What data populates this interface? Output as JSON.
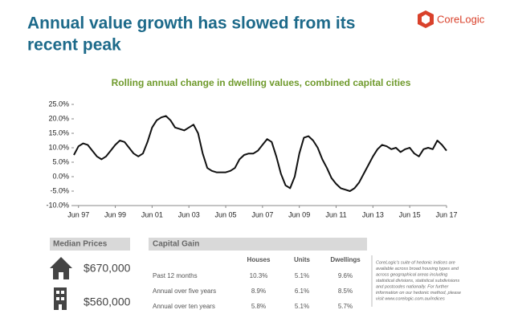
{
  "header": {
    "title_lines": [
      "Annual value growth has slowed from its",
      "recent peak"
    ],
    "logo": "CoreLogic"
  },
  "chart_data": {
    "type": "line",
    "title": "Rolling annual change in dwelling values, combined capital cities",
    "categories": [
      null,
      "Jun 97",
      null,
      null,
      null,
      null,
      null,
      null,
      null,
      "Jun 99",
      null,
      null,
      null,
      null,
      null,
      null,
      null,
      "Jun 01",
      null,
      null,
      null,
      null,
      null,
      null,
      null,
      "Jun 03",
      null,
      null,
      null,
      null,
      null,
      null,
      null,
      "Jun 05",
      null,
      null,
      null,
      null,
      null,
      null,
      null,
      "Jun 07",
      null,
      null,
      null,
      null,
      null,
      null,
      null,
      "Jun 09",
      null,
      null,
      null,
      null,
      null,
      null,
      null,
      "Jun 11",
      null,
      null,
      null,
      null,
      null,
      null,
      null,
      "Jun 13",
      null,
      null,
      null,
      null,
      null,
      null,
      null,
      "Jun 15",
      null,
      null,
      null,
      null,
      null,
      null,
      null,
      "Jun 17"
    ],
    "values": [
      7.5,
      10.5,
      11.5,
      11,
      9,
      7,
      6,
      7,
      9,
      11,
      12.5,
      12,
      10,
      8,
      7,
      8,
      12,
      17,
      19.5,
      20.5,
      21,
      19.5,
      17,
      16.5,
      16,
      17,
      18,
      15,
      8,
      3,
      2,
      1.5,
      1.5,
      1.5,
      2,
      3,
      6,
      7.5,
      8,
      8,
      9,
      11,
      13,
      12,
      7,
      1,
      -3,
      -4,
      0,
      8,
      13.5,
      14,
      12.5,
      10,
      6,
      3,
      -0.5,
      -2.5,
      -4,
      -4.5,
      -5,
      -4,
      -2,
      1,
      4,
      7,
      9.5,
      11,
      10.5,
      9.5,
      10,
      8.5,
      9.5,
      10,
      8,
      7,
      9.5,
      10,
      9.5,
      12.5,
      11,
      9
    ],
    "color": "#111111",
    "ylim": [
      -10,
      25
    ],
    "yticks": [
      {
        "value": -10,
        "label": "-10.0%"
      },
      {
        "value": -5,
        "label": "-5.0%"
      },
      {
        "value": 0,
        "label": "0.0%"
      },
      {
        "value": 5,
        "label": "5.0%"
      },
      {
        "value": 10,
        "label": "10.0%"
      },
      {
        "value": 15,
        "label": "15.0%"
      },
      {
        "value": 20,
        "label": "20.0%"
      },
      {
        "value": 25,
        "label": "25.0%"
      }
    ],
    "grid": false
  },
  "median_prices": {
    "title": "Median Prices",
    "houses": "$670,000",
    "units": "$560,000"
  },
  "capital_gain": {
    "title": "Capital Gain",
    "columns": [
      "Houses",
      "Units",
      "Dwellings"
    ],
    "rows": [
      [
        "Past 12 months",
        "10.3%",
        "5.1%",
        "9.6%"
      ],
      [
        "Annual over five years",
        "8.9%",
        "6.1%",
        "8.5%"
      ],
      [
        "Annual over ten years",
        "5.8%",
        "5.1%",
        "5.7%"
      ]
    ]
  },
  "note": [
    "CoreLogic's suite of hedonic indices are",
    "available across broad housing types and",
    "across geographical areas including",
    "statistical divisions, statistical subdivisions",
    "and postcodes nationally. For further",
    "information on our hedonic method, please",
    "visit www.corelogic.com.au/indices"
  ]
}
